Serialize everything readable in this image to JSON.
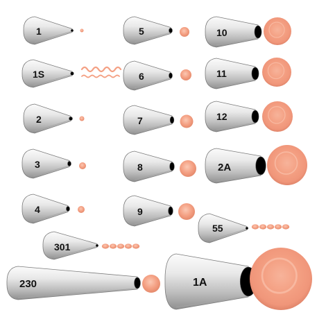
{
  "colors": {
    "metal_light": "#f5f5f5",
    "metal_mid": "#c8c8c8",
    "metal_dark": "#8a8a8a",
    "opening": "#000000",
    "icing": "#f4a083",
    "icing_light": "#f9c2ad",
    "icing_dark": "#e58a6c",
    "label": "#111111"
  },
  "tips": [
    {
      "name": "tip-1",
      "label": "1",
      "icing": "dot",
      "size": "xs"
    },
    {
      "name": "tip-1s",
      "label": "1S",
      "icing": "squiggle",
      "size": "xs"
    },
    {
      "name": "tip-2",
      "label": "2",
      "icing": "dot",
      "size": "xs"
    },
    {
      "name": "tip-3",
      "label": "3",
      "icing": "dot",
      "size": "s"
    },
    {
      "name": "tip-4",
      "label": "4",
      "icing": "dot",
      "size": "s"
    },
    {
      "name": "tip-301",
      "label": "301",
      "icing": "beads",
      "size": "flat"
    },
    {
      "name": "tip-230",
      "label": "230",
      "icing": "dot",
      "size": "long"
    },
    {
      "name": "tip-5",
      "label": "5",
      "icing": "dot",
      "size": "s"
    },
    {
      "name": "tip-6",
      "label": "6",
      "icing": "dot",
      "size": "s"
    },
    {
      "name": "tip-7",
      "label": "7",
      "icing": "dot",
      "size": "m"
    },
    {
      "name": "tip-8",
      "label": "8",
      "icing": "dot",
      "size": "m"
    },
    {
      "name": "tip-9",
      "label": "9",
      "icing": "dot",
      "size": "m"
    },
    {
      "name": "tip-10",
      "label": "10",
      "icing": "dot",
      "size": "l"
    },
    {
      "name": "tip-11",
      "label": "11",
      "icing": "dot",
      "size": "l"
    },
    {
      "name": "tip-12",
      "label": "12",
      "icing": "dot",
      "size": "l"
    },
    {
      "name": "tip-2a",
      "label": "2A",
      "icing": "dot",
      "size": "xl"
    },
    {
      "name": "tip-55",
      "label": "55",
      "icing": "beads",
      "size": "flat"
    },
    {
      "name": "tip-1a",
      "label": "1A",
      "icing": "dot",
      "size": "xxl"
    }
  ]
}
